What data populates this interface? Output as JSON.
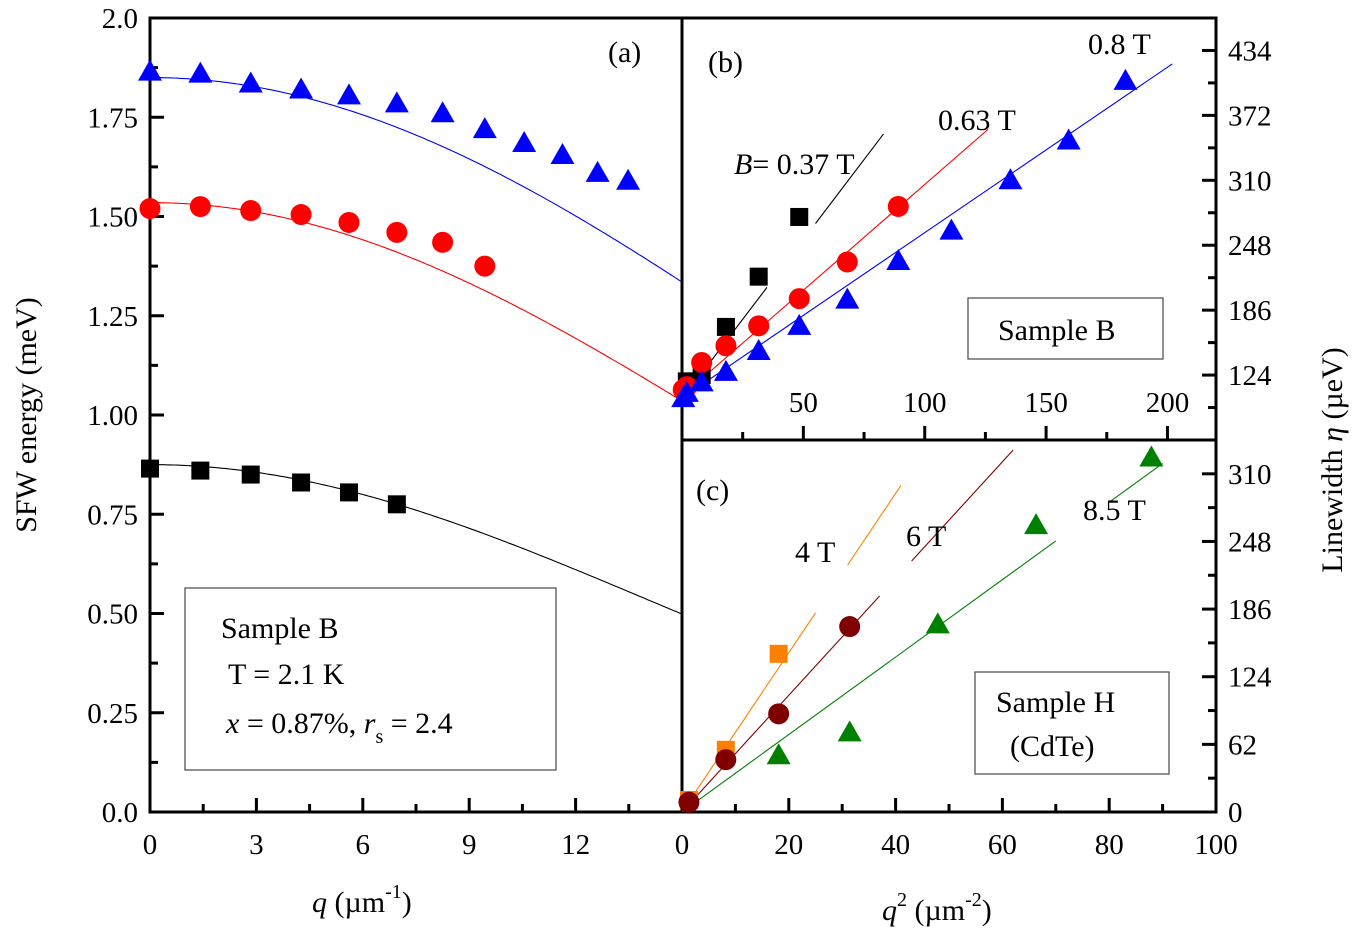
{
  "chart_data": [
    {
      "panel": "a",
      "type": "scatter",
      "panel_label": "(a)",
      "xlabel": "q (µm⁻¹)",
      "xlabel_var": "q",
      "xlabel_unit": " (µm",
      "xlabel_exp": "-1",
      "xlabel_close": ")",
      "ylabel": "SFW energy (meV)",
      "xlim": [
        0,
        15
      ],
      "ylim": [
        0,
        2.0
      ],
      "x_ticks": [
        0,
        3,
        6,
        9,
        12
      ],
      "x_tick_labels": [
        "0",
        "3",
        "6",
        "9",
        "12"
      ],
      "y_ticks": [
        0,
        0.25,
        0.5,
        0.75,
        1.0,
        1.25,
        1.5,
        1.75,
        2.0
      ],
      "y_tick_labels": [
        "0.0",
        "0.25",
        "0.50",
        "0.75",
        "1.00",
        "1.25",
        "1.50",
        "1.75",
        "2.0"
      ],
      "grid": false,
      "info_box": {
        "line1": "Sample B",
        "line2": "T = 2.1 K",
        "line3_x": "x",
        "line3_mid": " = 0.87%, ",
        "line3_r": "r",
        "line3_sub": "s",
        "line3_end": " = 2.4"
      },
      "series": [
        {
          "name": "0.8 T",
          "marker": "triangle",
          "color": "#0000ff",
          "x": [
            0,
            1.42,
            2.84,
            4.26,
            5.61,
            6.96,
            8.25,
            9.44,
            10.55,
            11.63,
            12.62,
            13.48
          ],
          "y": [
            1.865,
            1.86,
            1.835,
            1.82,
            1.805,
            1.785,
            1.76,
            1.72,
            1.685,
            1.655,
            1.61,
            1.59
          ],
          "fit": {
            "E0": 1.85,
            "coef": 0.00145,
            "x_range": [
              0,
              15
            ]
          }
        },
        {
          "name": "0.63 T",
          "marker": "circle",
          "color": "#ff0000",
          "x": [
            0,
            1.42,
            2.84,
            4.26,
            5.61,
            6.96,
            8.25,
            9.44
          ],
          "y": [
            1.52,
            1.525,
            1.515,
            1.505,
            1.485,
            1.46,
            1.435,
            1.375
          ],
          "fit": {
            "E0": 1.535,
            "coef": 0.00175,
            "x_range": [
              0,
              15
            ]
          }
        },
        {
          "name": "0.37 T",
          "marker": "square",
          "color": "#000000",
          "x": [
            0,
            1.42,
            2.84,
            4.26,
            5.61,
            6.96
          ],
          "y": [
            0.865,
            0.86,
            0.85,
            0.83,
            0.805,
            0.775
          ],
          "fit": {
            "E0": 0.875,
            "coef": 0.0025,
            "x_range": [
              0,
              15
            ]
          }
        }
      ]
    },
    {
      "panel": "b",
      "type": "scatter",
      "panel_label": "(b)",
      "xlabel": "q² (µm⁻²)",
      "ylabel": "Linewidth η (µeV)",
      "xlim": [
        0,
        220
      ],
      "ylim": [
        62,
        465
      ],
      "x_ticks": [
        50,
        100,
        150,
        200
      ],
      "x_tick_labels": [
        "50",
        "100",
        "150",
        "200"
      ],
      "y_ticks": [
        124,
        186,
        248,
        310,
        372,
        434
      ],
      "y_tick_labels": [
        "124",
        "186",
        "248",
        "310",
        "372",
        "434"
      ],
      "grid": false,
      "sample_box": "Sample B",
      "annotations": {
        "b037_var": "B",
        "b037_text": "= 0.37 T",
        "b063": "0.63 T",
        "b08": "0.8 T"
      },
      "series": [
        {
          "name": "0.37 T",
          "marker": "square",
          "color": "#000000",
          "x": [
            2,
            8.1,
            18.1,
            31.6,
            48.3
          ],
          "y": [
            118,
            124,
            170,
            218,
            275
          ],
          "fit": {
            "slope": 3.05,
            "intercept": 101,
            "x_range": [
              0,
              83
            ]
          }
        },
        {
          "name": "0.63 T",
          "marker": "circle",
          "color": "#ff0000",
          "x": [
            0.5,
            2,
            8.1,
            18.1,
            31.6,
            48.3,
            68.1,
            89.1
          ],
          "y": [
            110,
            113,
            136,
            152,
            171,
            197,
            232,
            285
          ],
          "fit": {
            "slope": 2.02,
            "intercept": 104,
            "x_range": [
              0,
              126
            ]
          }
        },
        {
          "name": "0.8 T",
          "marker": "triangle",
          "color": "#0000ff",
          "x": [
            0.5,
            2,
            8.1,
            18.1,
            31.6,
            48.3,
            68.1,
            89.1,
            111.0,
            135.3,
            159.3,
            182.7
          ],
          "y": [
            102,
            107,
            117,
            127,
            147,
            171,
            196,
            233,
            262,
            310,
            348,
            405
          ],
          "fit": {
            "slope": 1.58,
            "intercept": 102,
            "x_range": [
              0,
              202
            ]
          }
        }
      ]
    },
    {
      "panel": "c",
      "type": "scatter",
      "panel_label": "(c)",
      "xlabel": "q² (µm⁻²)",
      "xlabel_var": "q",
      "xlabel_sup": "2",
      "xlabel_unit": " (µm",
      "xlabel_exp": "-2",
      "xlabel_close": ")",
      "ylabel": "Linewidth η (µeV)",
      "ylabel_text": "Linewidth ",
      "ylabel_var": "η",
      "ylabel_unit": " (µeV)",
      "xlim": [
        0,
        100
      ],
      "ylim": [
        0,
        341
      ],
      "x_ticks": [
        0,
        20,
        40,
        60,
        80,
        100
      ],
      "x_tick_labels": [
        "0",
        "20",
        "40",
        "60",
        "80",
        "100"
      ],
      "y_ticks": [
        0,
        62,
        124,
        186,
        248,
        310
      ],
      "y_tick_labels": [
        "0",
        "62",
        "124",
        "186",
        "248",
        "310"
      ],
      "grid": false,
      "sample_box_line1": "Sample H",
      "sample_box_line2": "(CdTe)",
      "annotations": {
        "b4": "4 T",
        "b6": "6 T",
        "b85": "8.5 T"
      },
      "series": [
        {
          "name": "4 T",
          "marker": "square",
          "color": "#ff8000",
          "x": [
            1.3,
            8.2,
            18.1
          ],
          "y": [
            11,
            57,
            145
          ],
          "fit": {
            "slope": 7.3,
            "intercept": 0,
            "x_range": [
              0,
              41
            ]
          }
        },
        {
          "name": "6 T",
          "marker": "circle",
          "color": "#800000",
          "x": [
            1.3,
            8.2,
            18.1,
            31.4
          ],
          "y": [
            9,
            48,
            90,
            170
          ],
          "fit": {
            "slope": 5.35,
            "intercept": 0,
            "x_range": [
              0,
              62
            ]
          }
        },
        {
          "name": "8.5 T",
          "marker": "triangle",
          "color": "#008000",
          "x": [
            18.1,
            31.4,
            47.9,
            66.3,
            87.9
          ],
          "y": [
            52,
            73,
            172,
            263,
            325
          ],
          "fit": {
            "slope": 3.55,
            "intercept": 0,
            "x_range": [
              0,
              90
            ]
          }
        }
      ]
    }
  ]
}
